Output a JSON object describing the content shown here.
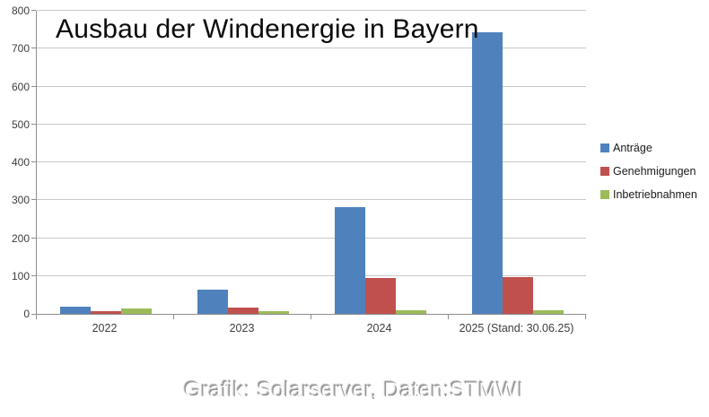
{
  "chart_data": {
    "type": "bar",
    "title": "Ausbau der Windenergie in Bayern",
    "categories": [
      "2022",
      "2023",
      "2024",
      "2025 (Stand: 30.06.25)"
    ],
    "series": [
      {
        "name": "Anträge",
        "color": "#4F81BD",
        "values": [
          18,
          64,
          281,
          743
        ]
      },
      {
        "name": "Genehmigungen",
        "color": "#C0504D",
        "values": [
          7,
          17,
          94,
          97
        ]
      },
      {
        "name": "Inbetriebnahmen",
        "color": "#9BBB59",
        "values": [
          14,
          8,
          10,
          9
        ]
      }
    ],
    "ylim": [
      0,
      800
    ],
    "ytick_step": 100,
    "grid": true,
    "legend_position": "right",
    "gridline_color": "#c9c9c9",
    "axis_color": "#8e8e8e"
  },
  "caption": "Grafik: Solarserver, Daten:STMWI"
}
